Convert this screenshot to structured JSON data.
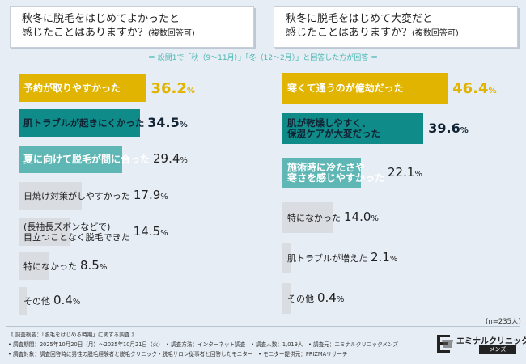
{
  "left_panel": {
    "title": "秋冬に脱毛をはじめてよかったと\n感じたことはありますか？",
    "note": "(複数回答可)"
  },
  "right_panel": {
    "title": "秋冬に脱毛をはじめて大変だと\n感じたことはありますか？",
    "note": "(複数回答可)"
  },
  "banner": "＝ 設問1で「秋（9～11月）」「冬（12～2月）」と回答した方が回答 ＝",
  "colors": {
    "gold": "#e0b400",
    "teal_dark": "#0f8c8a",
    "teal_mid": "#5fb7b5",
    "grey": "#d9dde1"
  },
  "chart_data": [
    {
      "type": "bar",
      "orientation": "horizontal",
      "categories": [
        "予約が取りやすかった",
        "肌トラブルが起きにくかった",
        "夏に向けて脱毛が間に合った",
        "日焼け対策がしやすかった",
        "(長袖長ズボンなどで)\n目立つことなく脱毛できた",
        "特になかった",
        "その他"
      ],
      "values": [
        36.2,
        34.5,
        29.4,
        17.9,
        14.5,
        8.5,
        0.4
      ],
      "value_labels": [
        "36.2",
        "34.5",
        "29.4",
        "17.9",
        "14.5",
        "8.5",
        "0.4"
      ],
      "unit": "%"
    },
    {
      "type": "bar",
      "orientation": "horizontal",
      "categories": [
        "寒くて通うのが億劫だった",
        "肌が乾燥しやすく、\n保湿ケアが大変だった",
        "施術時に冷たさや\n寒さを感じやすかった",
        "特になかった",
        "肌トラブルが増えた",
        "その他"
      ],
      "values": [
        46.4,
        39.6,
        22.1,
        14.0,
        2.1,
        0.4
      ],
      "value_labels": [
        "46.4",
        "39.6",
        "22.1",
        "14.0",
        "2.1",
        "0.4"
      ],
      "unit": "%"
    }
  ],
  "sample_note": "(n=235人)",
  "footer": [
    "《 調査概要：「脱毛をはじめる時期」に関する調査 》",
    "• 調査期間：2025年10月20日（月）～2025年10月21日（火）　• 調査方法：インターネット調査　• 調査人数：1,019人　• 調査元：エミナルクリニックメンズ",
    "• 調査対象：調査回答時に男性の脱毛経験者と脱毛クリニック・脱毛サロン従事者と回答したモニター　• モニター提供元：PRIZMAリサーチ"
  ],
  "logo": {
    "name": "エミナルクリニック",
    "sub": "メンズ"
  }
}
